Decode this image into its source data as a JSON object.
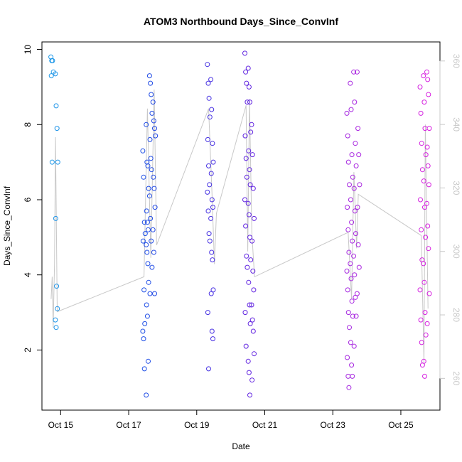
{
  "chart_data": {
    "type": "scatter",
    "title": "ATOM3 Northbound Days_Since_ConvInf",
    "xlabel": "Date",
    "ylabel": "Days_Since_ConvInf",
    "x_ticks": [
      "Oct 15",
      "Oct 17",
      "Oct 19",
      "Oct 21",
      "Oct 23",
      "Oct 25"
    ],
    "x_tick_days": [
      15,
      17,
      19,
      21,
      23,
      25
    ],
    "xlim_days": [
      14.45,
      26.15
    ],
    "ylim": [
      0.4,
      10.2
    ],
    "y_ticks": [
      2,
      4,
      6,
      8,
      10
    ],
    "right_axis": {
      "ticks": [
        260,
        280,
        300,
        320,
        340,
        360
      ],
      "ylim": [
        250,
        366
      ],
      "color": "#c8c8c8"
    },
    "color_ramp": [
      "#1fa0e8",
      "#1a4fe6",
      "#5a22e0",
      "#a028e0",
      "#e020e0"
    ],
    "series_points": [
      {
        "day": 14.75,
        "y": [
          9.8,
          9.7,
          9.7,
          9.4,
          9.3,
          7.0
        ]
      },
      {
        "day": 14.88,
        "y": [
          9.35,
          8.5,
          7.9,
          7.0,
          5.5,
          3.7,
          3.1,
          2.8,
          2.6
        ]
      },
      {
        "day": 17.45,
        "y": [
          7.3,
          6.6,
          5.4,
          5.1,
          4.9,
          3.6,
          2.7,
          2.5,
          2.3,
          1.5
        ]
      },
      {
        "day": 17.55,
        "y": [
          8.0,
          7.0,
          6.9,
          6.3,
          5.7,
          5.4,
          5.2,
          4.8,
          4.6,
          4.3,
          3.8,
          3.2,
          2.9,
          1.7,
          0.8
        ]
      },
      {
        "day": 17.65,
        "y": [
          9.3,
          9.1,
          8.8,
          8.3,
          7.6,
          7.1,
          6.8,
          6.1,
          5.5,
          4.9,
          4.2,
          3.5
        ]
      },
      {
        "day": 17.75,
        "y": [
          8.6,
          8.1,
          7.9,
          7.7,
          6.6,
          6.3,
          5.8,
          5.2,
          4.6,
          3.5
        ]
      },
      {
        "day": 19.35,
        "y": [
          9.6,
          9.1,
          8.7,
          8.2,
          7.6,
          6.9,
          6.4,
          6.2,
          5.7,
          5.1,
          4.9,
          3.0,
          1.5
        ]
      },
      {
        "day": 19.45,
        "y": [
          9.2,
          8.4,
          7.5,
          7.0,
          6.7,
          6.0,
          5.8,
          5.5,
          4.6,
          4.4,
          3.6,
          3.5,
          2.5,
          2.3
        ]
      },
      {
        "day": 20.45,
        "y": [
          9.9,
          9.4,
          9.1,
          8.6,
          7.7,
          7.1,
          6.6,
          6.0,
          5.3,
          4.5,
          4.2,
          3.0,
          2.1
        ]
      },
      {
        "day": 20.55,
        "y": [
          9.5,
          9.0,
          8.6,
          7.8,
          7.3,
          6.8,
          6.4,
          5.9,
          5.6,
          5.0,
          4.4,
          3.8,
          3.2,
          2.7,
          1.7,
          1.4,
          0.8
        ]
      },
      {
        "day": 20.65,
        "y": [
          8.0,
          7.2,
          6.3,
          5.5,
          4.9,
          4.1,
          3.6,
          3.2,
          2.8,
          2.5,
          1.9,
          1.2
        ]
      },
      {
        "day": 23.45,
        "y": [
          8.3,
          7.7,
          7.0,
          6.4,
          5.8,
          5.2,
          4.6,
          4.1,
          3.6,
          3.0,
          2.6,
          1.8,
          1.3,
          1.0
        ]
      },
      {
        "day": 23.55,
        "y": [
          9.1,
          8.4,
          7.2,
          6.6,
          6.0,
          5.4,
          4.9,
          4.3,
          3.9,
          3.3,
          2.9,
          2.2,
          1.6,
          1.3
        ]
      },
      {
        "day": 23.65,
        "y": [
          9.4,
          8.6,
          7.5,
          6.9,
          6.3,
          5.7,
          5.1,
          4.5,
          4.0,
          3.4,
          2.9,
          2.1
        ]
      },
      {
        "day": 23.75,
        "y": [
          9.4,
          7.9,
          7.2,
          6.4,
          5.8,
          4.8,
          4.2,
          3.5
        ]
      },
      {
        "day": 25.6,
        "y": [
          9.0,
          8.3,
          7.5,
          6.8,
          6.0,
          5.2,
          4.4,
          3.6,
          2.8,
          2.2,
          1.6
        ]
      },
      {
        "day": 25.7,
        "y": [
          9.3,
          8.6,
          7.9,
          7.2,
          6.5,
          5.8,
          5.0,
          4.3,
          3.8,
          3.0,
          2.4,
          1.7,
          1.3
        ]
      },
      {
        "day": 25.8,
        "y": [
          9.4,
          9.2,
          8.8,
          7.9,
          7.4,
          6.9,
          6.4,
          5.9,
          5.3,
          4.7,
          3.5,
          2.7
        ]
      }
    ],
    "gray_line": {
      "color": "#c8c8c8",
      "points": [
        [
          14.72,
          285
        ],
        [
          14.75,
          292
        ],
        [
          14.78,
          276
        ],
        [
          14.82,
          296
        ],
        [
          14.85,
          336
        ],
        [
          14.9,
          281
        ],
        [
          17.45,
          292
        ],
        [
          17.55,
          345
        ],
        [
          17.65,
          298
        ],
        [
          17.75,
          351
        ],
        [
          17.82,
          302
        ],
        [
          19.35,
          345
        ],
        [
          19.45,
          318
        ],
        [
          19.52,
          296
        ],
        [
          19.58,
          312
        ],
        [
          20.45,
          346
        ],
        [
          20.5,
          300
        ],
        [
          20.55,
          348
        ],
        [
          20.62,
          306
        ],
        [
          20.7,
          292
        ],
        [
          23.45,
          306
        ],
        [
          23.55,
          285
        ],
        [
          23.62,
          325
        ],
        [
          23.7,
          301
        ],
        [
          23.75,
          318
        ],
        [
          25.6,
          305
        ],
        [
          25.68,
          265
        ],
        [
          25.72,
          340
        ],
        [
          25.8,
          282
        ]
      ]
    }
  }
}
